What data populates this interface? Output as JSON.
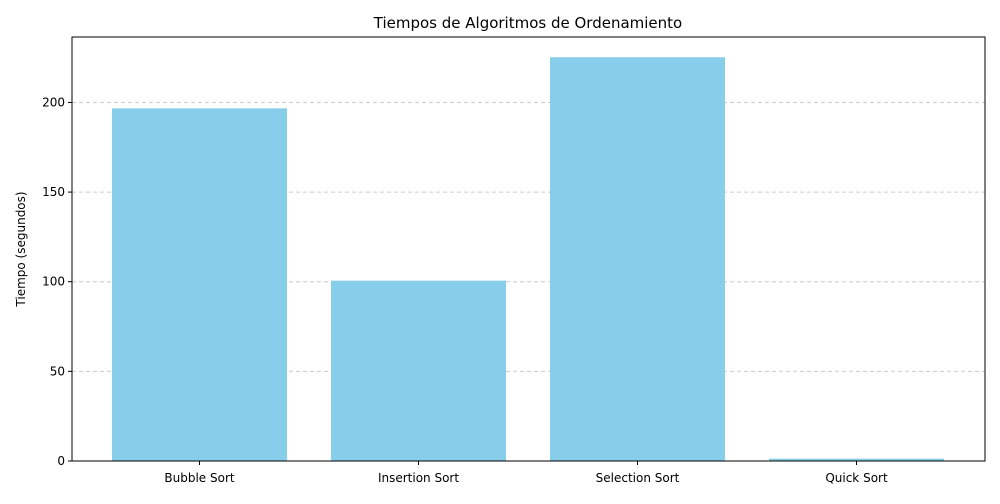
{
  "chart_data": {
    "type": "bar",
    "title": "Tiempos de Algoritmos de Ordenamiento",
    "xlabel": "",
    "ylabel": "Tiempo (segundos)",
    "categories": [
      "Bubble Sort",
      "Insertion Sort",
      "Selection Sort",
      "Quick Sort"
    ],
    "values": [
      196.7,
      100.6,
      225.2,
      1.3
    ],
    "ylim": [
      0,
      236.5
    ],
    "yticks": [
      0,
      50,
      100,
      150,
      200
    ],
    "ytick_labels": [
      "0",
      "50",
      "100",
      "150",
      "200"
    ],
    "grid": "y-dashed",
    "bar_color": "#87ceeb",
    "grid_color": "#cccccc"
  }
}
